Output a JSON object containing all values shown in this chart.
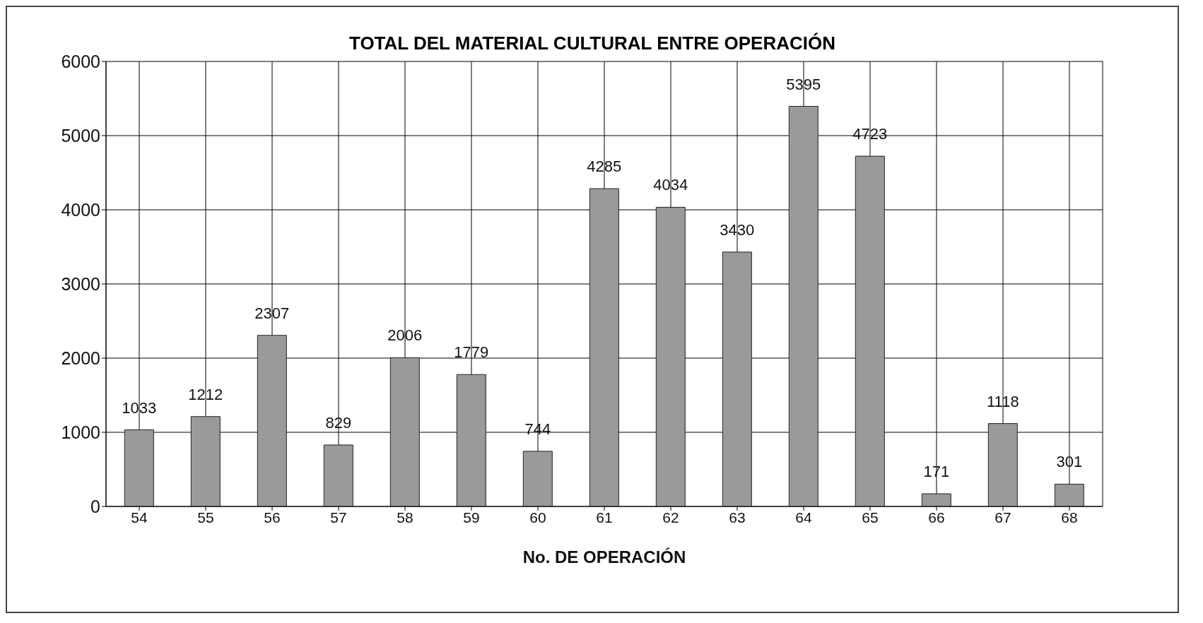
{
  "chart_data": {
    "type": "bar",
    "title": "TOTAL DEL MATERIAL CULTURAL ENTRE OPERACIÓN",
    "xlabel": "No. DE OPERACIÓN",
    "categories": [
      "54",
      "55",
      "56",
      "57",
      "58",
      "59",
      "60",
      "61",
      "62",
      "63",
      "64",
      "65",
      "66",
      "67",
      "68"
    ],
    "values": [
      1033,
      1212,
      2307,
      829,
      2006,
      1779,
      744,
      4285,
      4034,
      3430,
      5395,
      4723,
      171,
      1118,
      301
    ],
    "color": "#9a9a9a",
    "ylim": [
      0,
      6000
    ],
    "yticks": [
      0,
      1000,
      2000,
      3000,
      4000,
      5000,
      6000
    ],
    "grid": true,
    "data_labels": true
  }
}
